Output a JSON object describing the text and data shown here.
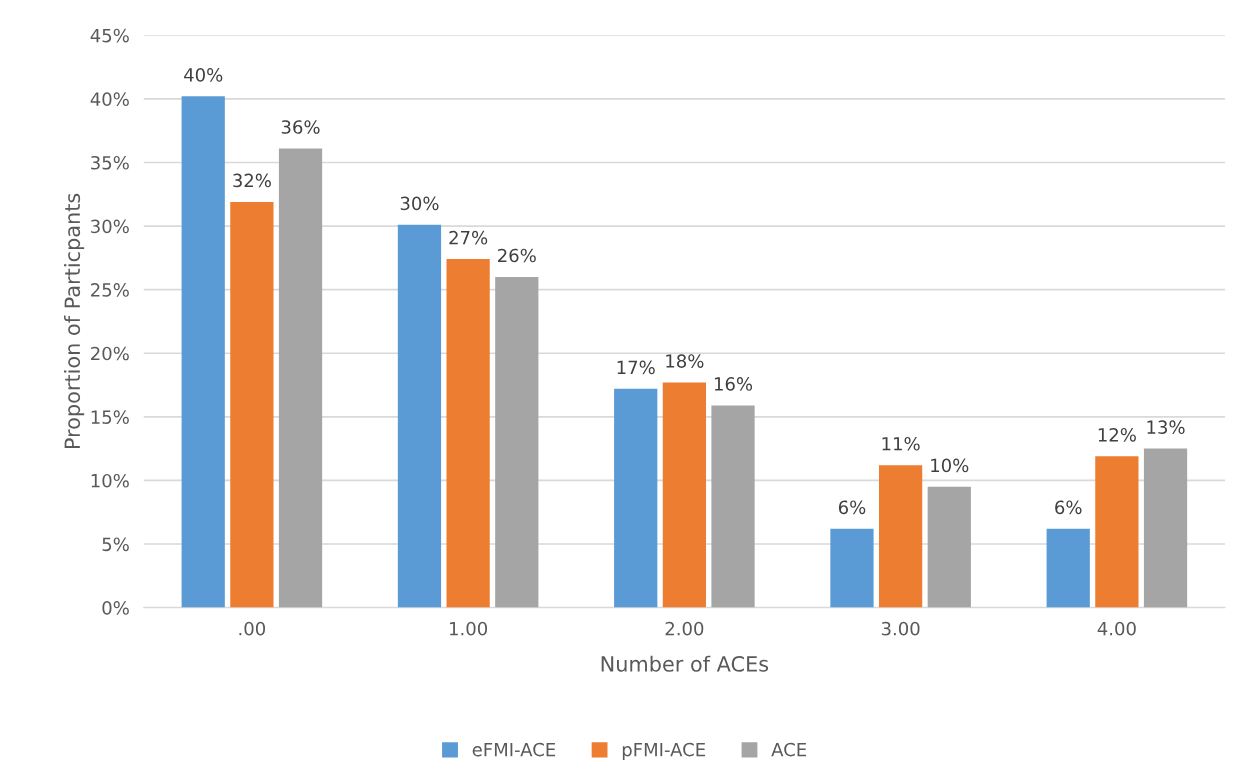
{
  "chart_data": {
    "type": "bar",
    "xlabel": "Number of ACEs",
    "ylabel": "Proportion of Particpants",
    "categories": [
      ".00",
      "1.00",
      "2.00",
      "3.00",
      "4.00"
    ],
    "series": [
      {
        "name": "eFMI-ACE",
        "color": "#5b9bd5",
        "values": [
          40.2,
          30.1,
          17.2,
          6.2,
          6.2
        ],
        "value_labels": [
          "40%",
          "30%",
          "17%",
          "6%",
          "6%"
        ]
      },
      {
        "name": "pFMI-ACE",
        "color": "#ed7d31",
        "values": [
          31.9,
          27.4,
          17.7,
          11.2,
          11.9
        ],
        "value_labels": [
          "32%",
          "27%",
          "18%",
          "11%",
          "12%"
        ]
      },
      {
        "name": "ACE",
        "color": "#a5a5a5",
        "values": [
          36.1,
          26.0,
          15.9,
          9.5,
          12.5
        ],
        "value_labels": [
          "36%",
          "26%",
          "16%",
          "10%",
          "13%"
        ]
      }
    ],
    "ylim": [
      0,
      45
    ],
    "yticks": [
      {
        "value": 0,
        "label": "0%"
      },
      {
        "value": 5,
        "label": "5%"
      },
      {
        "value": 10,
        "label": "10%"
      },
      {
        "value": 15,
        "label": "15%"
      },
      {
        "value": 20,
        "label": "20%"
      },
      {
        "value": 25,
        "label": "25%"
      },
      {
        "value": 30,
        "label": "30%"
      },
      {
        "value": 35,
        "label": "35%"
      },
      {
        "value": 40,
        "label": "40%"
      },
      {
        "value": 45,
        "label": "45%"
      }
    ],
    "grid": "y",
    "legend": "bottom"
  }
}
